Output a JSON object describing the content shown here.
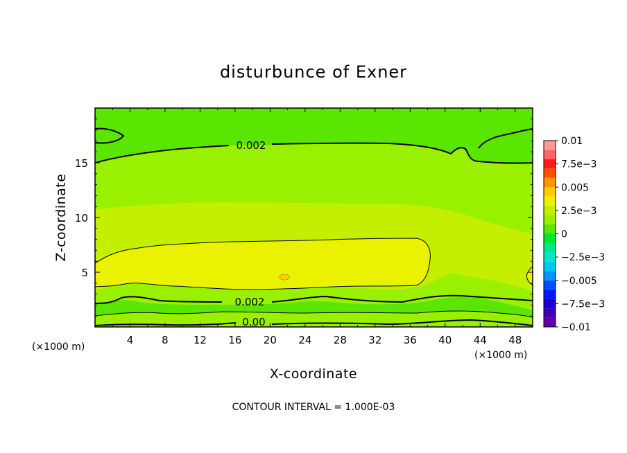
{
  "chart_data": {
    "type": "heatmap",
    "title": "disturbunce of Exner",
    "xlabel": "X-coordinate",
    "ylabel": "Z-coordinate",
    "x_unit_left": "(×1000 m)",
    "x_unit_right": "(×1000 m)",
    "xlim": [
      0,
      50
    ],
    "ylim": [
      0,
      20
    ],
    "x_ticks": [
      4,
      8,
      12,
      16,
      20,
      24,
      28,
      32,
      36,
      40,
      44,
      48
    ],
    "y_ticks": [
      5,
      10,
      15
    ],
    "contour_interval_text": "CONTOUR INTERVAL = 1.000E-03",
    "colorbar": {
      "range": [
        -0.01,
        0.01
      ],
      "labels": [
        "0.01",
        "7.5e-3",
        "0.005",
        "2.5e-3",
        "0",
        "-2.5e-3",
        "-0.005",
        "-7.5e-3",
        "-0.01"
      ],
      "bands": [
        {
          "from": 0.009,
          "to": 0.01,
          "color": "#ff9999"
        },
        {
          "from": 0.008,
          "to": 0.009,
          "color": "#ff6666"
        },
        {
          "from": 0.007,
          "to": 0.008,
          "color": "#ff1a1a"
        },
        {
          "from": 0.006,
          "to": 0.007,
          "color": "#ff5000"
        },
        {
          "from": 0.005,
          "to": 0.006,
          "color": "#ff9600"
        },
        {
          "from": 0.004,
          "to": 0.005,
          "color": "#ffcc00"
        },
        {
          "from": 0.003,
          "to": 0.004,
          "color": "#ebf200"
        },
        {
          "from": 0.002,
          "to": 0.003,
          "color": "#c4f000"
        },
        {
          "from": 0.001,
          "to": 0.002,
          "color": "#99f000"
        },
        {
          "from": 0.0,
          "to": 0.001,
          "color": "#5ae600"
        },
        {
          "from": -0.001,
          "to": 0.0,
          "color": "#00e632"
        },
        {
          "from": -0.002,
          "to": -0.001,
          "color": "#00e68c"
        },
        {
          "from": -0.003,
          "to": -0.002,
          "color": "#00e6c8"
        },
        {
          "from": -0.004,
          "to": -0.003,
          "color": "#00c8f0"
        },
        {
          "from": -0.005,
          "to": -0.004,
          "color": "#0096ff"
        },
        {
          "from": -0.006,
          "to": -0.005,
          "color": "#0050ff"
        },
        {
          "from": -0.007,
          "to": -0.006,
          "color": "#0a14ff"
        },
        {
          "from": -0.008,
          "to": -0.007,
          "color": "#1e00d2"
        },
        {
          "from": -0.009,
          "to": -0.008,
          "color": "#3c00b4"
        },
        {
          "from": -0.01,
          "to": -0.009,
          "color": "#6400aa"
        }
      ]
    },
    "contour_labels": [
      "0.002",
      "0.002",
      "0.00"
    ],
    "field_regions": [
      {
        "level": 0.001,
        "color": "#5ae600",
        "region": "background outside the 0.002 contours (upper part and bottom rows)"
      },
      {
        "level": 0.002,
        "color": "#99f000",
        "region": "broad layer between z≈2.5 and z≈16.5"
      },
      {
        "level": 0.003,
        "color": "#c4f000",
        "region": "central band z≈4 to z≈11"
      },
      {
        "level": 0.004,
        "color": "#ebf200",
        "region": "core x≈0–38, z≈4–8"
      }
    ]
  }
}
